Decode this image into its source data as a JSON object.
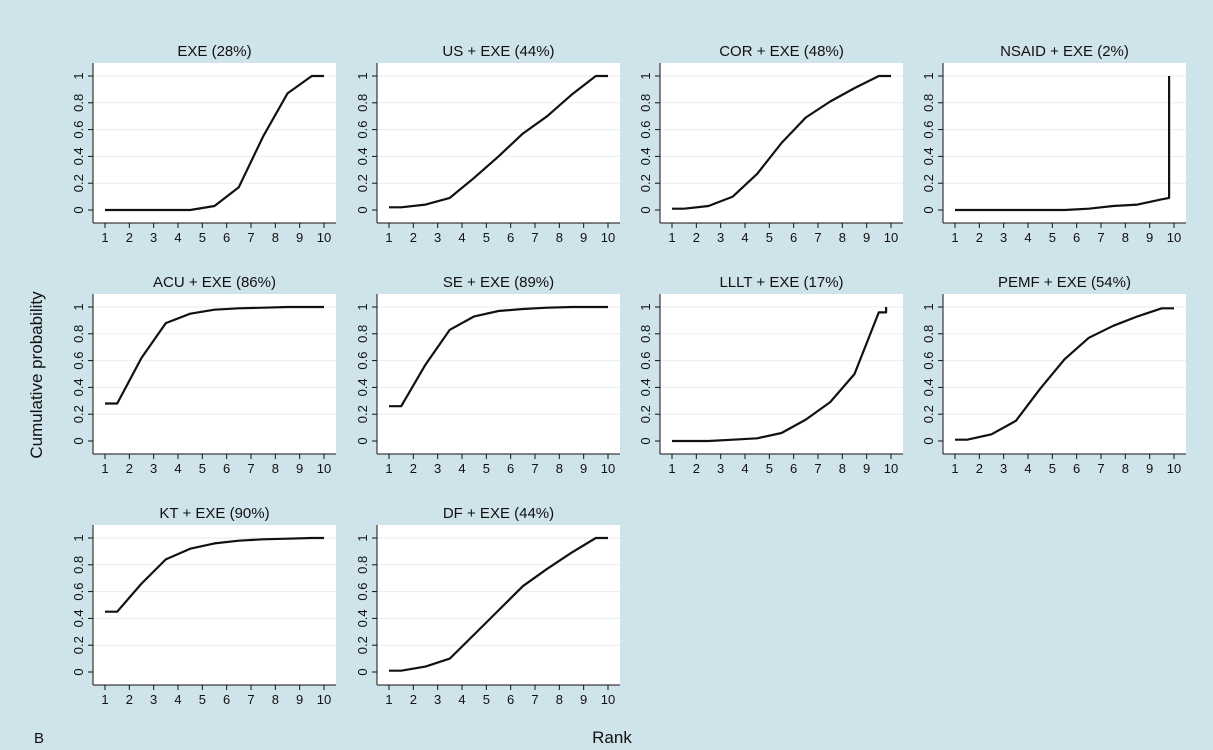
{
  "figure": {
    "panel_letter": "B",
    "ylabel": "Cumulative probability",
    "xlabel": "Rank",
    "colors": {
      "background": "#cfe3ea",
      "plot_area": "#ffffff",
      "line": "#111111",
      "grid": "#e6eef2"
    }
  },
  "chart_data": [
    {
      "type": "line",
      "title": "EXE (28%)",
      "xlabel": "",
      "ylabel": "",
      "xlim": [
        1,
        10
      ],
      "ylim": [
        0,
        1
      ],
      "xticks": [
        "1",
        "2",
        "3",
        "4",
        "5",
        "6",
        "7",
        "8",
        "9",
        "10"
      ],
      "yticks": [
        "0",
        "0.2",
        "0.4",
        "0.6",
        "0.8",
        "1"
      ],
      "grid": true,
      "x": [
        1,
        4.5,
        5.5,
        6.5,
        7.5,
        8.5,
        9.5,
        10
      ],
      "y": [
        0,
        0,
        0.03,
        0.17,
        0.55,
        0.87,
        1.0,
        1.0
      ]
    },
    {
      "type": "line",
      "title": "US + EXE (44%)",
      "xlabel": "",
      "ylabel": "",
      "xlim": [
        1,
        10
      ],
      "ylim": [
        0,
        1
      ],
      "xticks": [
        "1",
        "2",
        "3",
        "4",
        "5",
        "6",
        "7",
        "8",
        "9",
        "10"
      ],
      "yticks": [
        "0",
        "0.2",
        "0.4",
        "0.6",
        "0.8",
        "1"
      ],
      "grid": true,
      "x": [
        1,
        1.5,
        2.5,
        3.5,
        4.5,
        5.5,
        6.5,
        7.5,
        8.5,
        9.5,
        10
      ],
      "y": [
        0.02,
        0.02,
        0.04,
        0.09,
        0.24,
        0.4,
        0.57,
        0.7,
        0.86,
        1.0,
        1.0
      ]
    },
    {
      "type": "line",
      "title": "COR + EXE (48%)",
      "xlabel": "",
      "ylabel": "",
      "xlim": [
        1,
        10
      ],
      "ylim": [
        0,
        1
      ],
      "xticks": [
        "1",
        "2",
        "3",
        "4",
        "5",
        "6",
        "7",
        "8",
        "9",
        "10"
      ],
      "yticks": [
        "0",
        "0.2",
        "0.4",
        "0.6",
        "0.8",
        "1"
      ],
      "grid": true,
      "x": [
        1,
        1.5,
        2.5,
        3.5,
        4.5,
        5.5,
        6.5,
        7.5,
        8.5,
        9.5,
        10
      ],
      "y": [
        0.01,
        0.01,
        0.03,
        0.1,
        0.27,
        0.5,
        0.69,
        0.81,
        0.91,
        1.0,
        1.0
      ]
    },
    {
      "type": "line",
      "title": "NSAID + EXE (2%)",
      "xlabel": "",
      "ylabel": "",
      "xlim": [
        1,
        10
      ],
      "ylim": [
        0,
        1
      ],
      "xticks": [
        "1",
        "2",
        "3",
        "4",
        "5",
        "6",
        "7",
        "8",
        "9",
        "10"
      ],
      "yticks": [
        "0",
        "0.2",
        "0.4",
        "0.6",
        "0.8",
        "1"
      ],
      "grid": true,
      "x": [
        1,
        5.5,
        6.5,
        7.5,
        8.5,
        9.5,
        9.8,
        9.8
      ],
      "y": [
        0,
        0,
        0.01,
        0.03,
        0.04,
        0.08,
        0.09,
        1.0
      ]
    },
    {
      "type": "line",
      "title": "ACU + EXE (86%)",
      "xlabel": "",
      "ylabel": "",
      "xlim": [
        1,
        10
      ],
      "ylim": [
        0,
        1
      ],
      "xticks": [
        "1",
        "2",
        "3",
        "4",
        "5",
        "6",
        "7",
        "8",
        "9",
        "10"
      ],
      "yticks": [
        "0",
        "0.2",
        "0.4",
        "0.6",
        "0.8",
        "1"
      ],
      "grid": true,
      "x": [
        1,
        1.5,
        2.5,
        3.5,
        4.5,
        5.5,
        6.5,
        7.5,
        8.5,
        9.5,
        10
      ],
      "y": [
        0.28,
        0.28,
        0.62,
        0.88,
        0.95,
        0.98,
        0.99,
        0.995,
        1.0,
        1.0,
        1.0
      ]
    },
    {
      "type": "line",
      "title": "SE + EXE (89%)",
      "xlabel": "",
      "ylabel": "",
      "xlim": [
        1,
        10
      ],
      "ylim": [
        0,
        1
      ],
      "xticks": [
        "1",
        "2",
        "3",
        "4",
        "5",
        "6",
        "7",
        "8",
        "9",
        "10"
      ],
      "yticks": [
        "0",
        "0.2",
        "0.4",
        "0.6",
        "0.8",
        "1"
      ],
      "grid": true,
      "x": [
        1,
        1.5,
        2.5,
        3.5,
        4.5,
        5.5,
        6.5,
        7.5,
        8.5,
        9.5,
        10
      ],
      "y": [
        0.26,
        0.26,
        0.57,
        0.83,
        0.93,
        0.97,
        0.985,
        0.995,
        1.0,
        1.0,
        1.0
      ]
    },
    {
      "type": "line",
      "title": "LLLT + EXE (17%)",
      "xlabel": "",
      "ylabel": "",
      "xlim": [
        1,
        10
      ],
      "ylim": [
        0,
        1
      ],
      "xticks": [
        "1",
        "2",
        "3",
        "4",
        "5",
        "6",
        "7",
        "8",
        "9",
        "10"
      ],
      "yticks": [
        "0",
        "0.2",
        "0.4",
        "0.6",
        "0.8",
        "1"
      ],
      "grid": true,
      "x": [
        1,
        2.5,
        3.5,
        4.5,
        5.5,
        6.5,
        7.5,
        8.5,
        9.5,
        9.8,
        9.8
      ],
      "y": [
        0,
        0,
        0.01,
        0.02,
        0.06,
        0.16,
        0.29,
        0.5,
        0.96,
        0.96,
        1.0
      ]
    },
    {
      "type": "line",
      "title": "PEMF + EXE (54%)",
      "xlabel": "",
      "ylabel": "",
      "xlim": [
        1,
        10
      ],
      "ylim": [
        0,
        1
      ],
      "xticks": [
        "1",
        "2",
        "3",
        "4",
        "5",
        "6",
        "7",
        "8",
        "9",
        "10"
      ],
      "yticks": [
        "0",
        "0.2",
        "0.4",
        "0.6",
        "0.8",
        "1"
      ],
      "grid": true,
      "x": [
        1,
        1.5,
        2.5,
        3.5,
        4.5,
        5.5,
        6.5,
        7.5,
        8.5,
        9.5,
        10
      ],
      "y": [
        0.01,
        0.01,
        0.05,
        0.15,
        0.39,
        0.61,
        0.77,
        0.86,
        0.93,
        0.99,
        0.99
      ]
    },
    {
      "type": "line",
      "title": "KT + EXE (90%)",
      "xlabel": "",
      "ylabel": "",
      "xlim": [
        1,
        10
      ],
      "ylim": [
        0,
        1
      ],
      "xticks": [
        "1",
        "2",
        "3",
        "4",
        "5",
        "6",
        "7",
        "8",
        "9",
        "10"
      ],
      "yticks": [
        "0",
        "0.2",
        "0.4",
        "0.6",
        "0.8",
        "1"
      ],
      "grid": true,
      "x": [
        1,
        1.5,
        2.5,
        3.5,
        4.5,
        5.5,
        6.5,
        7.5,
        8.5,
        9.5,
        10
      ],
      "y": [
        0.45,
        0.45,
        0.66,
        0.84,
        0.92,
        0.96,
        0.98,
        0.99,
        0.995,
        1.0,
        1.0
      ]
    },
    {
      "type": "line",
      "title": "DF + EXE (44%)",
      "xlabel": "",
      "ylabel": "",
      "xlim": [
        1,
        10
      ],
      "ylim": [
        0,
        1
      ],
      "xticks": [
        "1",
        "2",
        "3",
        "4",
        "5",
        "6",
        "7",
        "8",
        "9",
        "10"
      ],
      "yticks": [
        "0",
        "0.2",
        "0.4",
        "0.6",
        "0.8",
        "1"
      ],
      "grid": true,
      "x": [
        1,
        1.5,
        2.5,
        3.5,
        4.5,
        5.5,
        6.5,
        7.5,
        8.5,
        9.5,
        10
      ],
      "y": [
        0.01,
        0.01,
        0.04,
        0.1,
        0.28,
        0.46,
        0.64,
        0.77,
        0.89,
        1.0,
        1.0
      ]
    }
  ]
}
